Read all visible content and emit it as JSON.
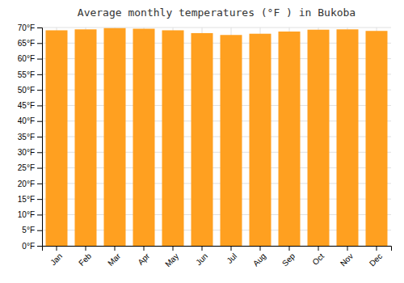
{
  "chart_data": {
    "type": "bar",
    "title": "Average monthly temperatures (°F ) in Bukoba",
    "categories": [
      "Jan",
      "Feb",
      "Mar",
      "Apr",
      "May",
      "Jun",
      "Jul",
      "Aug",
      "Sep",
      "Oct",
      "Nov",
      "Dec"
    ],
    "values": [
      69.1,
      69.4,
      69.8,
      69.6,
      69.1,
      68.2,
      67.6,
      68.0,
      68.7,
      69.3,
      69.4,
      68.9
    ],
    "color": "#FFA020",
    "ylim": [
      0,
      70
    ],
    "yticks": [
      {
        "value": 0,
        "label": "0°F"
      },
      {
        "value": 5,
        "label": "5°F"
      },
      {
        "value": 10,
        "label": "10°F"
      },
      {
        "value": 15,
        "label": "15°F"
      },
      {
        "value": 20,
        "label": "20°F"
      },
      {
        "value": 25,
        "label": "25°F"
      },
      {
        "value": 30,
        "label": "30°F"
      },
      {
        "value": 35,
        "label": "35°F"
      },
      {
        "value": 40,
        "label": "40°F"
      },
      {
        "value": 45,
        "label": "45°F"
      },
      {
        "value": 50,
        "label": "50°F"
      },
      {
        "value": 55,
        "label": "55°F"
      },
      {
        "value": 60,
        "label": "60°F"
      },
      {
        "value": 65,
        "label": "65°F"
      },
      {
        "value": 70,
        "label": "70°F"
      }
    ],
    "grid": true
  }
}
